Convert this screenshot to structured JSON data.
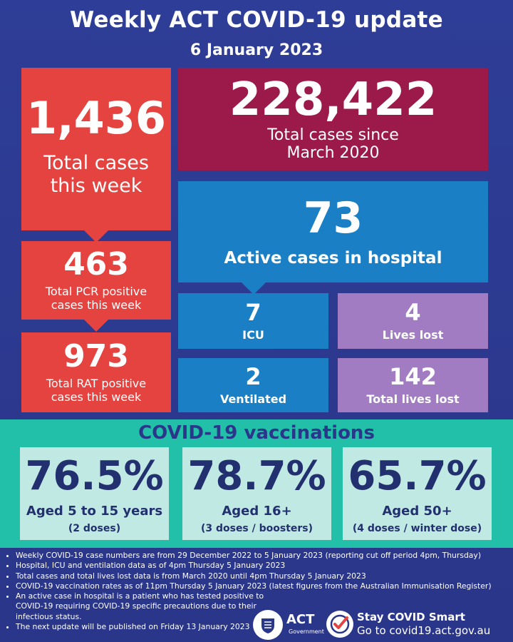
{
  "header": {
    "title": "Weekly ACT COVID-19 update",
    "date": "6 January 2023"
  },
  "cases": {
    "week_total": "1,436",
    "week_total_label_1": "Total cases",
    "week_total_label_2": "this week",
    "pcr_value": "463",
    "pcr_label_1": "Total PCR positive",
    "pcr_label_2": "cases this week",
    "rat_value": "973",
    "rat_label_1": "Total RAT positive",
    "rat_label_2": "cases this week",
    "since_total": "228,422",
    "since_label_1": "Total cases since",
    "since_label_2": "March 2020"
  },
  "hospital": {
    "active_value": "73",
    "active_label": "Active cases in hospital",
    "icu_value": "7",
    "icu_label": "ICU",
    "ventilated_value": "2",
    "ventilated_label": "Ventilated",
    "lives_lost_value": "4",
    "lives_lost_label": "Lives lost",
    "total_lives_lost_value": "142",
    "total_lives_lost_label": "Total lives lost"
  },
  "vaccinations": {
    "title": "COVID-19 vaccinations",
    "items": [
      {
        "pct": "76.5%",
        "label": "Aged 5 to 15 years",
        "sub": "(2 doses)"
      },
      {
        "pct": "78.7%",
        "label": "Aged 16+",
        "sub": "(3 doses / boosters)"
      },
      {
        "pct": "65.7%",
        "label": "Aged 50+",
        "sub": "(4 doses / winter dose)"
      }
    ]
  },
  "notes": [
    "Weekly COVID-19 case numbers are from 29 December 2022 to 5 January 2023 (reporting cut off period 4pm, Thursday)",
    "Hospital, ICU and ventilation data as of 4pm Thursday 5 January 2023",
    "Total cases and total lives lost data is from March 2020 until 4pm Thursday 5 January 2023",
    "COVID-19 vaccination rates as of 11pm Thursday 5 January 2023 (latest figures from the Australian Immunisation Register)",
    "An active case in hospital is a patient who has tested positive to COVID-19 requiring COVID-19 specific precautions due to their infectious status.",
    "The next update will be published on Friday 13 January 2023"
  ],
  "footer": {
    "act_logo_text": "ACT",
    "act_logo_sub": "Government",
    "stay_label": "Stay COVID Smart",
    "goto_label": "Go to covid19.act.gov.au"
  },
  "colors": {
    "background": "#2e3d97",
    "red": "#e4433f",
    "plum": "#9c1a4a",
    "blue": "#1a7fc4",
    "lavender": "#a17cc2",
    "teal": "#23c0a9",
    "vaccine_card": "#c0e9e3"
  }
}
